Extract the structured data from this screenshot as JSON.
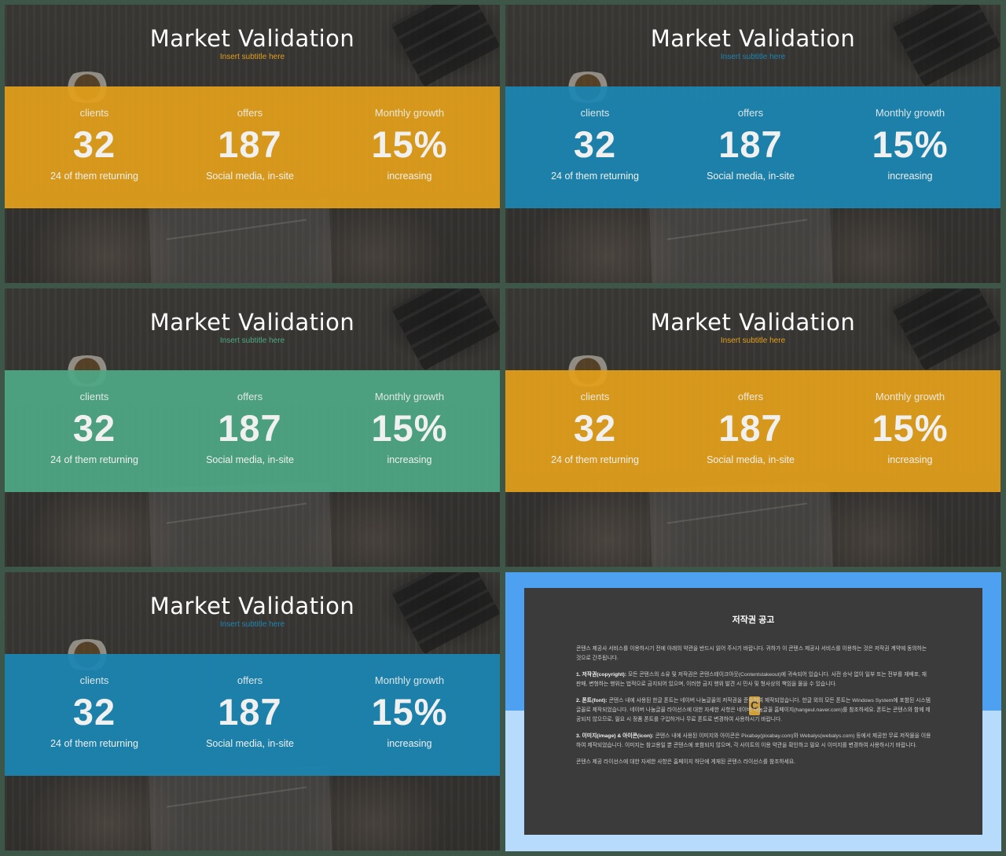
{
  "slide": {
    "title": "Market Validation",
    "subtitle": "Insert subtitle here",
    "stats": [
      {
        "label": "clients",
        "value": "32",
        "desc": "24 of them returning"
      },
      {
        "label": "offers",
        "value": "187",
        "desc": "Social media, in-site"
      },
      {
        "label": "Monthly growth",
        "value": "15%",
        "desc": "increasing"
      }
    ]
  },
  "variants": [
    {
      "band_color": "#e3a01b",
      "subtitle_color": "#e3a01b"
    },
    {
      "band_color": "#1b86b3",
      "subtitle_color": "#1b86b3"
    },
    {
      "band_color": "#4ea885",
      "subtitle_color": "#4ea885"
    },
    {
      "band_color": "#e3a01b",
      "subtitle_color": "#e3a01b"
    },
    {
      "band_color": "#1b86b3",
      "subtitle_color": "#1b86b3"
    }
  ],
  "copyright": {
    "title": "저작권 공고",
    "intro": "콘텐스 제공사 서비스를 이용하시기 전에 아래의 약관을 반드시 읽어 주시기 바랍니다. 귀하가 이 콘텐스 제공사 서비스를 이용하는 것은 저작권 계약에 동의하는 것으로 간주됩니다.",
    "p1_head": "1. 저작권(copyright):",
    "p1": " 모든 콘텐스의 소유 및 저작권은 콘텐스테이크아웃(Contentstakeout)에 귀속되어 있습니다. 사전 승낙 없이 일부 또는 전부를 재배포, 재판매, 변형하는 행위는 법적으로 금지되어 있으며, 이러한 금지 행위 발견 시 민사 및 형사상의 책임을 물을 수 있습니다.",
    "p2_head": "2. 폰트(font):",
    "p2": " 콘텐스 내에 사용된 한글 폰트는 네이버 나눔글꼴의 저작권을 준수하여 제작되었습니다. 한글 외의 모든 폰트는 Windows System에 포함된 시스템 글꼴로 제작되었습니다. 네이버 나눔글꼴 라이선스에 대한 자세한 사항은 네이버 나눔글꼴 홈페이지(hangeul.naver.com)를 참조하세요. 폰트는 콘텐스와 함께 제공되지 않으므로, 필요 시 정품 폰트를 구입하거나 무료 폰트로 변경하여 사용하시기 바랍니다.",
    "p3_head": "3. 이미지(image) & 아이콘(icon):",
    "p3": " 콘텐스 내에 사용된 이미지와 아이콘은 Pixabay(pixabay.com)와 Webalys(webalys.com) 등에서 제공한 무료 저작물을 이용하여 제작되었습니다. 이미지는 참고용일 뿐 콘텐스에 포함되지 않으며, 각 사이트의 이용 약관을 확인하고 필요 시 이미지를 변경하여 사용하시기 바랍니다.",
    "outro": "콘텐스 제공 라이선스에 대한 자세한 사항은 홈페이지 하단에 게재된 콘텐스 라이선스를 참조하세요.",
    "logo_letter": "C"
  }
}
